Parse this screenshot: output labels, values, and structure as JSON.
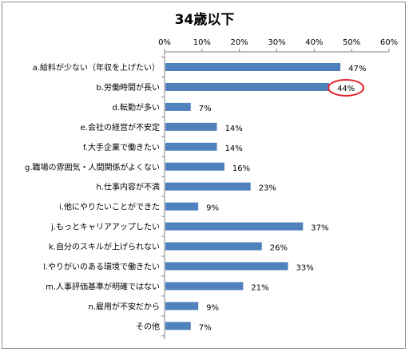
{
  "chart_data": {
    "type": "bar",
    "orientation": "horizontal",
    "title": "34歳以下",
    "categories": [
      "a.給料が少ない（年収を上げたい）",
      "b.労働時間が長い",
      "d.転勤が多い",
      "e.会社の経営が不安定",
      "f.大手企業で働きたい",
      "g.職場の雰囲気・人間関係がよくない",
      "h.仕事内容が不満",
      "i.他にやりたいことができた",
      "j.もっとキャリアアップしたい",
      "k.自分のスキルが上げられない",
      "l.やりがいのある環境で働きたい",
      "m.人事評価基準が明確ではない",
      "n.雇用が不安だから",
      "その他"
    ],
    "values": [
      47,
      44,
      7,
      14,
      14,
      16,
      23,
      9,
      37,
      26,
      33,
      21,
      9,
      7
    ],
    "value_labels": [
      "47%",
      "44%",
      "7%",
      "14%",
      "14%",
      "16%",
      "23%",
      "9%",
      "37%",
      "26%",
      "33%",
      "21%",
      "9%",
      "7%"
    ],
    "x_ticks": [
      "0%",
      "10%",
      "20%",
      "30%",
      "40%",
      "50%",
      "60%"
    ],
    "xlim": [
      0,
      60
    ],
    "x_axis_position": "top",
    "grid": false,
    "legend": "none",
    "highlighted_category": "b.労働時間が長い",
    "colors": {
      "bar": "#4f81bd",
      "highlight_circle": "#e3232b",
      "axis": "#868686",
      "frame": "#8c8c8c"
    }
  }
}
